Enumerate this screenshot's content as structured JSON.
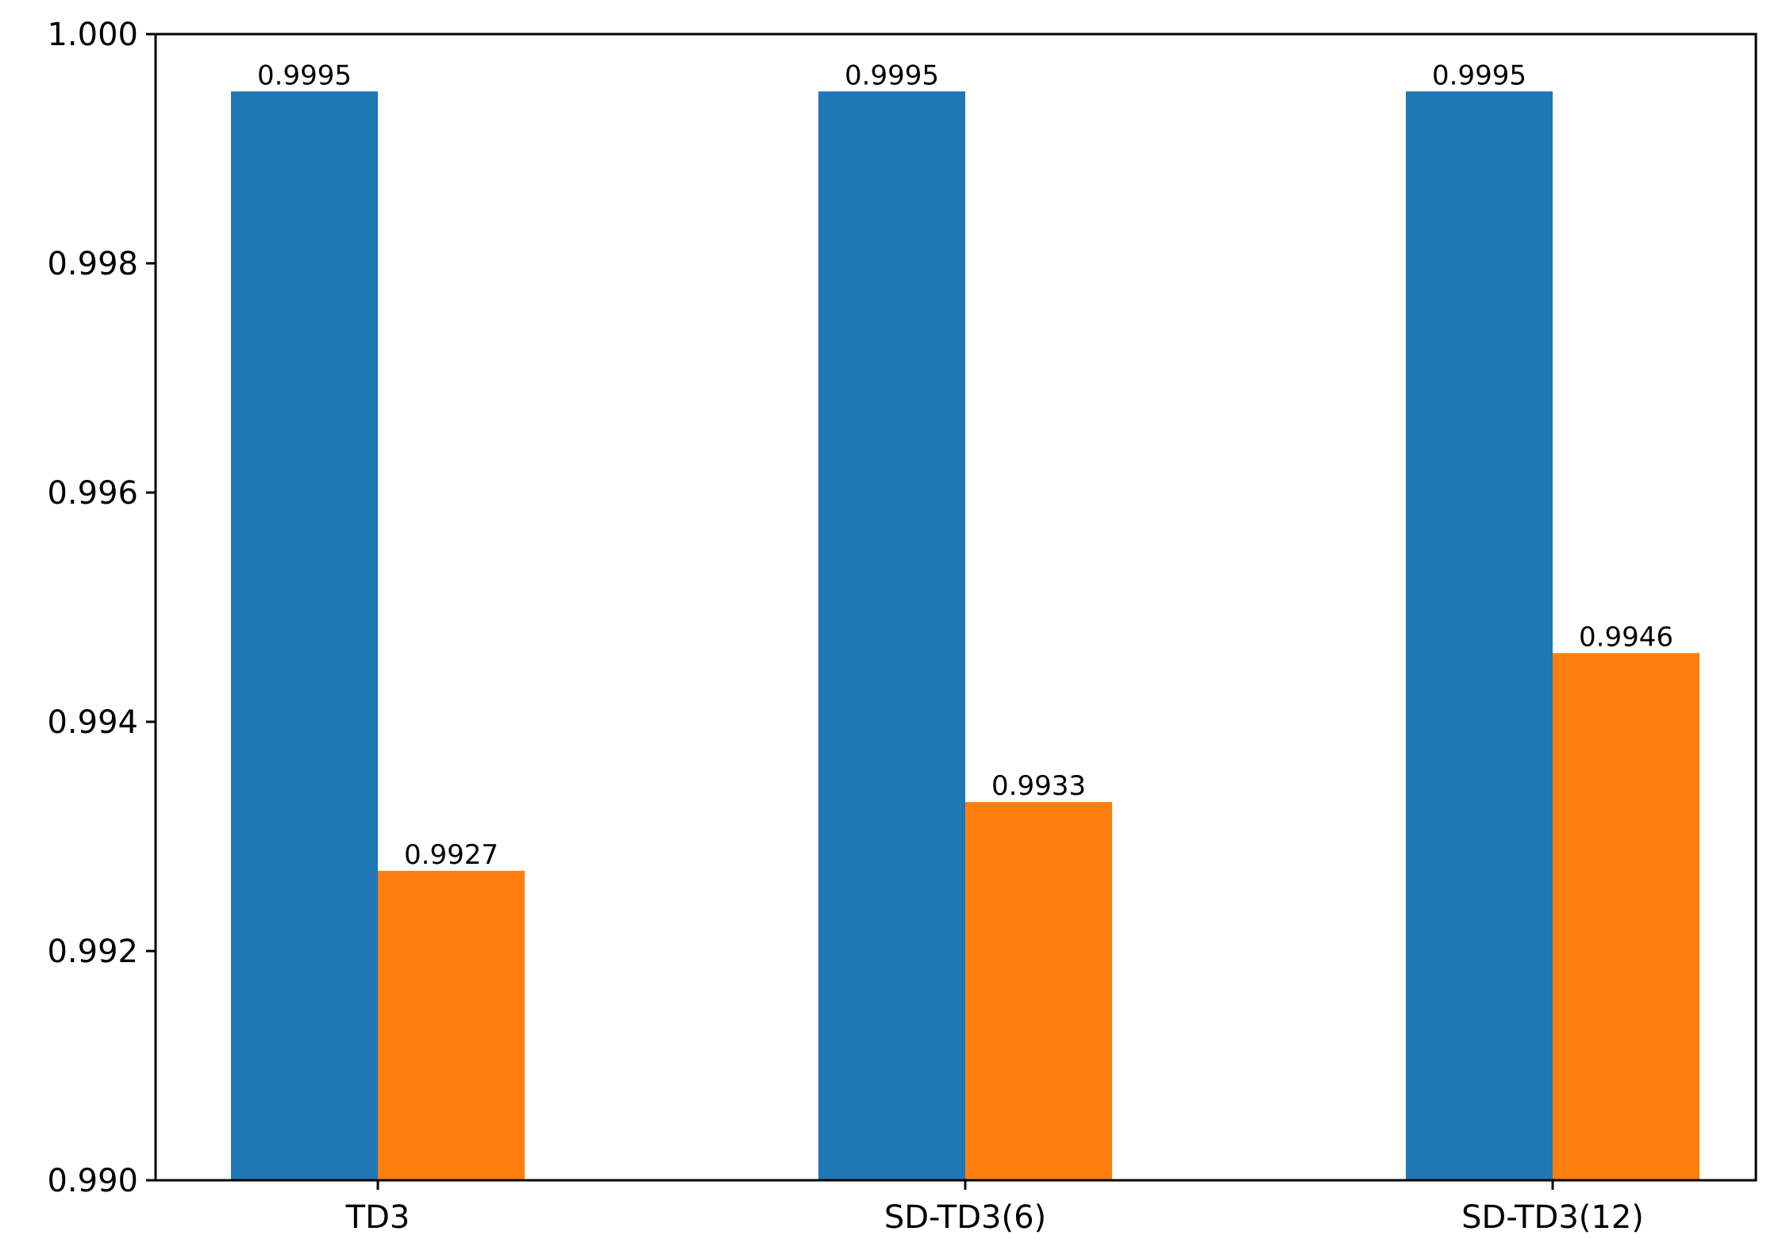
{
  "chart_data": {
    "type": "bar",
    "categories": [
      "TD3",
      "SD-TD3(6)",
      "SD-TD3(12)"
    ],
    "series": [
      {
        "values": [
          0.9995,
          0.9995,
          0.9995
        ],
        "labels": [
          "0.9995",
          "0.9995",
          "0.9995"
        ],
        "color": "#1f77b4"
      },
      {
        "values": [
          0.9927,
          0.9933,
          0.9946
        ],
        "labels": [
          "0.9927",
          "0.9933",
          "0.9946"
        ],
        "color": "#ff7f0e"
      }
    ],
    "ylim": [
      0.99,
      1.0
    ],
    "yticks": [
      "0.990",
      "0.992",
      "0.994",
      "0.996",
      "0.998",
      "1.000"
    ],
    "grid": false,
    "legend": "none"
  }
}
